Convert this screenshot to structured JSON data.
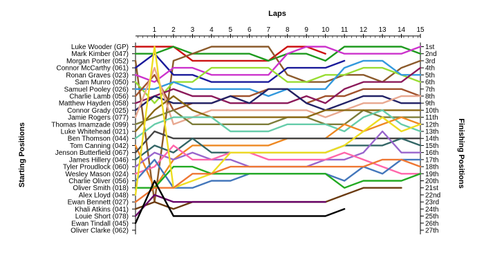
{
  "chart_data": {
    "type": "line",
    "title": "",
    "xlabel": "Laps",
    "ylabel_left": "Starting Positions",
    "ylabel_right": "Finishing Positions",
    "laps": [
      1,
      2,
      3,
      4,
      5,
      6,
      7,
      8,
      9,
      10,
      11,
      12,
      13,
      14,
      15
    ],
    "grid": false,
    "drivers": [
      "Luke Wooder (GP)",
      "Mark Kimber (047)",
      "Morgan Porter (052)",
      "Connor McCarthy (061)",
      "Ronan Graves (023)",
      "Sam Munro (050)",
      "Samuel Pooley (026)",
      "Charlie Lamb (056)",
      "Matthew Hayden (058)",
      "Connor Grady (025)",
      "Jamie Rogers (077)",
      "Thomas Imamzade (099)",
      "Luke Whitehead (021)",
      "Ben Thomson (044)",
      "Tom Canning (042)",
      "Jenson Butterfield (067)",
      "James Hillery (046)",
      "Tyler Proudlock (060)",
      "Wesley Mason (024)",
      "Charlie Oliver (056)",
      "Oliver Smith (018)",
      "Alex Lloyd (048)",
      "Ewan Bennett (027)",
      "Khali Atkins (041)",
      "Louie Short (078)",
      "Ewan Tindall (045)",
      "Oliver Clarke (062)"
    ],
    "finishing_labels": [
      "1st",
      "2nd",
      "3rd",
      "4th",
      "5th",
      "6th",
      "7th",
      "8th",
      "9th",
      "10th",
      "11th",
      "12th",
      "13th",
      "14th",
      "15th",
      "16th",
      "17th",
      "18th",
      "19th",
      "20th",
      "21st",
      "22nd",
      "23rd",
      "24th",
      "25th",
      "26th",
      "27th"
    ],
    "series": [
      {
        "start": 1,
        "positions": [
          1,
          1,
          3,
          3,
          3,
          3,
          3,
          1,
          1,
          2
        ],
        "color": "#cc1111"
      },
      {
        "start": 2,
        "positions": [
          2,
          1,
          2,
          2,
          2,
          2,
          3,
          2,
          2,
          3,
          1,
          1,
          1,
          1,
          2
        ],
        "color": "#1e9a1e"
      },
      {
        "start": 3,
        "positions": [
          23,
          3,
          2,
          1,
          1,
          1,
          1,
          5,
          6,
          6,
          5,
          5,
          6,
          4,
          3
        ],
        "color": "#8b5a2b"
      },
      {
        "start": 4,
        "positions": [
          2,
          5,
          5,
          6,
          6,
          6,
          6,
          4,
          4,
          4,
          3
        ],
        "color": "#1a1a9a"
      },
      {
        "start": 5,
        "positions": [
          6,
          4,
          4,
          5,
          5,
          5,
          5,
          2,
          1,
          1,
          2,
          2,
          2,
          2,
          1
        ],
        "color": "#cc33cc"
      },
      {
        "start": 6,
        "positions": [
          9,
          6,
          6,
          4,
          4,
          4,
          4,
          6,
          6,
          5,
          5,
          4,
          4,
          5,
          6
        ],
        "color": "#99dd33"
      },
      {
        "start": 7,
        "positions": [
          7,
          6,
          7,
          7,
          7,
          7,
          8,
          7,
          7,
          7,
          4,
          3,
          3,
          5,
          5
        ],
        "color": "#3399dd"
      },
      {
        "start": 8,
        "positions": [
          5,
          10,
          9,
          9,
          8,
          8,
          7,
          7,
          9,
          8,
          8,
          7,
          7,
          7,
          8
        ],
        "color": "#a0522d"
      },
      {
        "start": 9,
        "positions": [
          8,
          7,
          8,
          8,
          9,
          9,
          9,
          9,
          8,
          9,
          7,
          6,
          6,
          6,
          4
        ],
        "color": "#8b1a5a"
      },
      {
        "start": 10,
        "positions": [
          8,
          9,
          9,
          9,
          8,
          9,
          7,
          7,
          9,
          10,
          9,
          8,
          8,
          9,
          9
        ],
        "color": "#222266"
      },
      {
        "start": 11,
        "positions": [
          4,
          12,
          11,
          10,
          10,
          10,
          10,
          10,
          10,
          11,
          10,
          9,
          9,
          8,
          8
        ],
        "color": "#e8a890"
      },
      {
        "start": 12,
        "positions": [
          11,
          10,
          12,
          12,
          12,
          12,
          12,
          11,
          11,
          12,
          12,
          10,
          11,
          11,
          11
        ],
        "color": "#7d7d3a"
      },
      {
        "start": 13,
        "positions": [
          10,
          8,
          10,
          11,
          11,
          11,
          11,
          11,
          11,
          10,
          10,
          10,
          10,
          10,
          10
        ],
        "color": "#8b6914"
      },
      {
        "start": 14,
        "positions": [
          12,
          11,
          11,
          11,
          13,
          13,
          13,
          12,
          12,
          12,
          13,
          11,
          10,
          12,
          13
        ],
        "color": "#66ccaa"
      },
      {
        "start": 15,
        "positions": [
          21,
          17,
          15,
          15,
          15,
          15,
          15,
          14,
          14,
          14,
          12,
          13,
          12,
          11,
          12
        ],
        "color": "#ee8822"
      },
      {
        "start": 16,
        "positions": [
          13,
          14,
          14,
          14,
          14,
          14,
          14,
          14,
          14,
          14,
          14,
          14,
          14,
          14,
          14
        ],
        "color": "#444444"
      },
      {
        "start": 17,
        "positions": [
          15,
          16,
          14,
          16,
          16,
          16,
          16,
          16,
          16,
          16,
          15,
          15,
          15,
          14,
          15
        ],
        "color": "#336666"
      },
      {
        "start": 18,
        "positions": [
          16,
          17,
          16,
          17,
          17,
          18,
          18,
          18,
          18,
          17,
          17,
          16,
          13,
          16,
          16
        ],
        "color": "#9966cc"
      },
      {
        "start": 19,
        "positions": [
          18,
          15,
          17,
          17,
          16,
          16,
          17,
          17,
          17,
          17,
          16,
          17,
          18,
          19,
          19
        ],
        "color": "#ff66aa"
      },
      {
        "start": 20,
        "positions": [
          17,
          21,
          21,
          20,
          20,
          19,
          19,
          19,
          19,
          19,
          20,
          18,
          19,
          17,
          17
        ],
        "color": "#4477bb"
      },
      {
        "start": 21,
        "positions": [
          21,
          18,
          18,
          19,
          19,
          19,
          19,
          19,
          19,
          19,
          21,
          20,
          20,
          20,
          19
        ],
        "color": "#22aa22"
      },
      {
        "start": 22,
        "positions": [
          1,
          21,
          20,
          19,
          16,
          16,
          16,
          16,
          16,
          16,
          15,
          13,
          11,
          13,
          12
        ],
        "color": "#eedd22"
      },
      {
        "start": 23,
        "positions": [
          21,
          21,
          19,
          19,
          18,
          18,
          18,
          18,
          18,
          18,
          18,
          18,
          17,
          17,
          18
        ],
        "color": "#ee7733"
      },
      {
        "start": 24,
        "positions": [
          23,
          24,
          23,
          23,
          23,
          23,
          23,
          23,
          23,
          23,
          22,
          21,
          21,
          21
        ],
        "color": "#6a3a10"
      },
      {
        "start": 25,
        "positions": [
          22,
          23,
          23,
          23,
          23,
          23,
          23,
          23,
          23,
          23
        ],
        "color": "#660066"
      },
      {
        "start": 26,
        "positions": [
          20,
          25,
          25,
          25,
          25,
          25,
          25,
          25,
          25,
          25,
          24
        ],
        "color": "#000000"
      }
    ]
  }
}
